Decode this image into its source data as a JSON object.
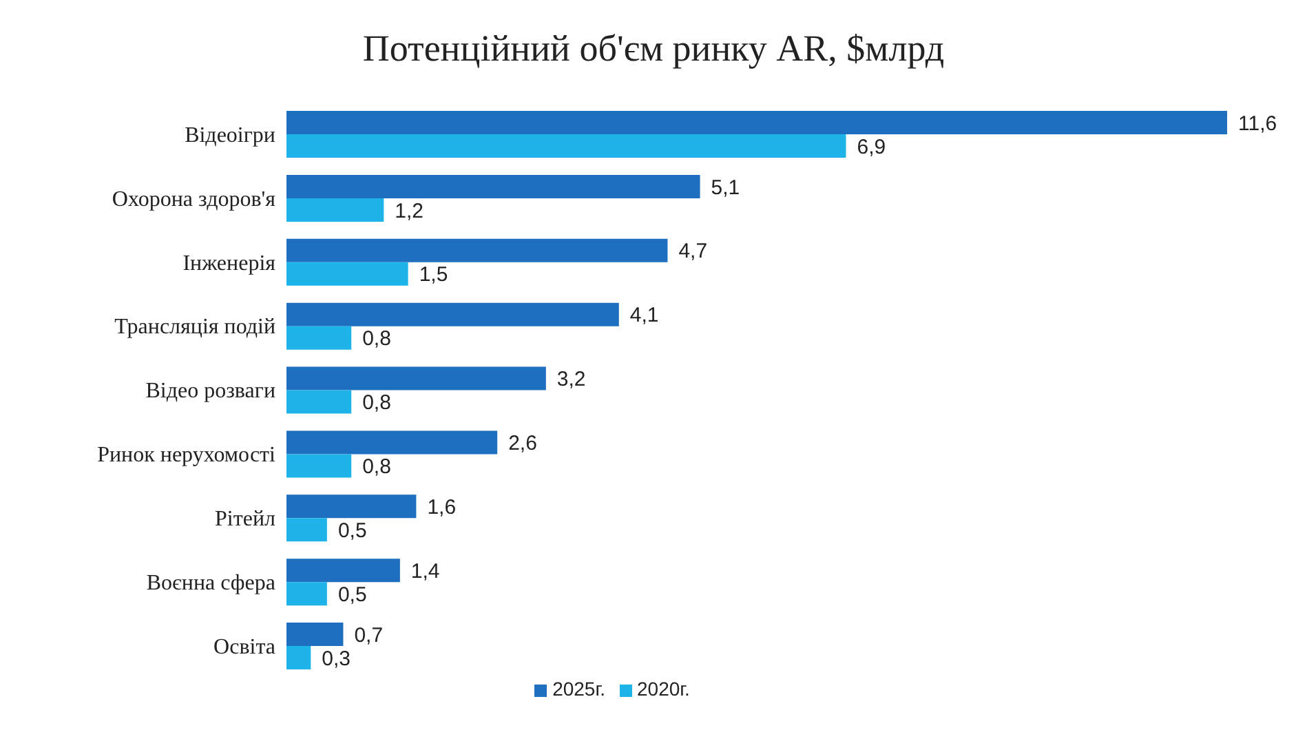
{
  "chart_data": {
    "type": "bar",
    "orientation": "horizontal",
    "title": "Потенційний об'єм ринку AR, $млрд",
    "categories": [
      "Відеоігри",
      "Охорона здоров'я",
      "Інженерія",
      "Трансляція подій",
      "Відео розваги",
      "Ринок нерухомості",
      "Рітейл",
      "Воєнна сфера",
      "Освіта"
    ],
    "series": [
      {
        "name": "2025г.",
        "color": "#1f6fc0",
        "values": [
          11.6,
          5.1,
          4.7,
          4.1,
          3.2,
          2.6,
          1.6,
          1.4,
          0.7
        ],
        "value_labels": [
          "11,6",
          "5,1",
          "4,7",
          "4,1",
          "3,2",
          "2,6",
          "1,6",
          "1,4",
          "0,7"
        ]
      },
      {
        "name": "2020г.",
        "color": "#1eb4ea",
        "values": [
          6.9,
          1.2,
          1.5,
          0.8,
          0.8,
          0.8,
          0.5,
          0.5,
          0.3
        ],
        "value_labels": [
          "6,9",
          "1,2",
          "1,5",
          "0,8",
          "0,8",
          "0,8",
          "0,5",
          "0,5",
          "0,3"
        ]
      }
    ],
    "grid": false,
    "legend": "bottom"
  }
}
